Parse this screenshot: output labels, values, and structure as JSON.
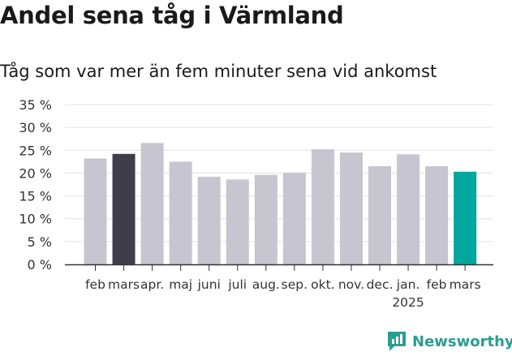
{
  "title": "Andel sena tåg i Värmland",
  "subtitle": "Tåg som var mer än fem minuter sena vid ankomst",
  "logo_text": "Newsworthy",
  "colors": {
    "bar": "#c6c5d0",
    "highlight_dark": "#3f3d4a",
    "highlight_accent": "#00a79d",
    "grid": "#e3e3e3",
    "axis": "#333333",
    "text": "#333333",
    "logo": "#2a9d8f"
  },
  "chart_data": {
    "type": "bar",
    "categories": [
      "feb",
      "mars",
      "apr.",
      "maj",
      "juni",
      "juli",
      "aug.",
      "sep.",
      "okt.",
      "nov.",
      "dec.",
      "jan.",
      "feb",
      "mars"
    ],
    "year_label": "2025",
    "year_label_under_index": 11,
    "values": [
      23.2,
      24.2,
      26.6,
      22.5,
      19.2,
      18.6,
      19.6,
      20.1,
      25.2,
      24.5,
      21.5,
      24.1,
      21.5,
      20.3
    ],
    "bar_colors": [
      "bar",
      "highlight_dark",
      "bar",
      "bar",
      "bar",
      "bar",
      "bar",
      "bar",
      "bar",
      "bar",
      "bar",
      "bar",
      "bar",
      "highlight_accent"
    ],
    "y_ticks": [
      0,
      5,
      10,
      15,
      20,
      25,
      30,
      35
    ],
    "y_tick_labels": [
      "0 %",
      "5 %",
      "10 %",
      "15 %",
      "20 %",
      "25 %",
      "30 %",
      "35 %"
    ],
    "ylim": [
      0,
      35
    ],
    "grid": true
  }
}
